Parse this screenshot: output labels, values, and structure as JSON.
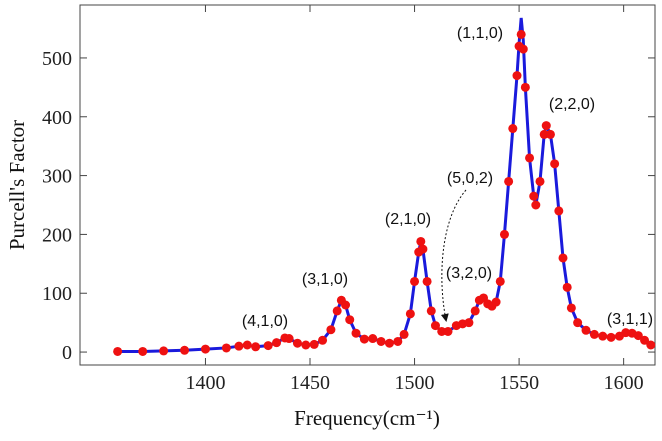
{
  "chart_data": {
    "type": "line",
    "x_label": "Frequency(cm⁻¹)",
    "y_label": "Purcell's Factor",
    "xlim": [
      1340,
      1615
    ],
    "ylim": [
      -22,
      590
    ],
    "xticks": [
      1400,
      1450,
      1500,
      1550,
      1600
    ],
    "yticks": [
      0,
      100,
      200,
      300,
      400,
      500
    ],
    "annotations": [
      "(1,1,0)",
      "(2,2,0)",
      "(5,0,2)",
      "(3,2,0)",
      "(2,1,0)",
      "(3,1,0)",
      "(4,1,0)",
      "(3,1,1)"
    ],
    "x": [
      1358,
      1370,
      1380,
      1390,
      1400,
      1410,
      1416,
      1420,
      1424,
      1430,
      1434,
      1438,
      1440,
      1444,
      1448,
      1452,
      1456,
      1460,
      1463,
      1465,
      1467,
      1469,
      1472,
      1476,
      1480,
      1484,
      1488,
      1492,
      1495,
      1498,
      1500,
      1502,
      1503,
      1504,
      1506,
      1508,
      1510,
      1513,
      1516,
      1520,
      1523,
      1526,
      1529,
      1531,
      1533,
      1535,
      1537,
      1539,
      1541,
      1543,
      1545,
      1547,
      1549,
      1550,
      1551,
      1552,
      1553,
      1555,
      1557,
      1558,
      1560,
      1562,
      1563,
      1565,
      1567,
      1569,
      1571,
      1573,
      1575,
      1578,
      1582,
      1586,
      1590,
      1594,
      1598,
      1601,
      1604,
      1607,
      1610,
      1613
    ],
    "series": [
      {
        "color": "#1a1adc",
        "values": [
          1,
          1,
          2,
          3,
          5,
          7,
          10,
          12,
          9,
          11,
          16,
          24,
          23,
          15,
          12,
          13,
          20,
          38,
          70,
          88,
          80,
          55,
          32,
          22,
          23,
          18,
          15,
          18,
          30,
          65,
          120,
          170,
          188,
          175,
          120,
          70,
          45,
          35,
          35,
          45,
          48,
          50,
          70,
          88,
          92,
          82,
          78,
          85,
          120,
          200,
          290,
          380,
          470,
          525,
          568,
          530,
          450,
          330,
          265,
          250,
          290,
          370,
          385,
          370,
          320,
          240,
          160,
          110,
          75,
          50,
          37,
          30,
          27,
          25,
          27,
          33,
          32,
          28,
          20,
          12
        ]
      },
      {
        "color": "#ee1111",
        "values": [
          1,
          1,
          2,
          3,
          5,
          7,
          10,
          12,
          9,
          11,
          16,
          24,
          23,
          15,
          12,
          13,
          20,
          38,
          70,
          88,
          80,
          55,
          32,
          22,
          23,
          18,
          15,
          18,
          30,
          65,
          120,
          170,
          188,
          175,
          120,
          70,
          45,
          35,
          35,
          45,
          48,
          50,
          70,
          88,
          92,
          82,
          78,
          85,
          120,
          200,
          290,
          380,
          470,
          520,
          540,
          515,
          450,
          330,
          265,
          250,
          290,
          370,
          385,
          370,
          320,
          240,
          160,
          110,
          75,
          50,
          37,
          30,
          27,
          25,
          27,
          33,
          32,
          28,
          20,
          12
        ]
      }
    ]
  }
}
